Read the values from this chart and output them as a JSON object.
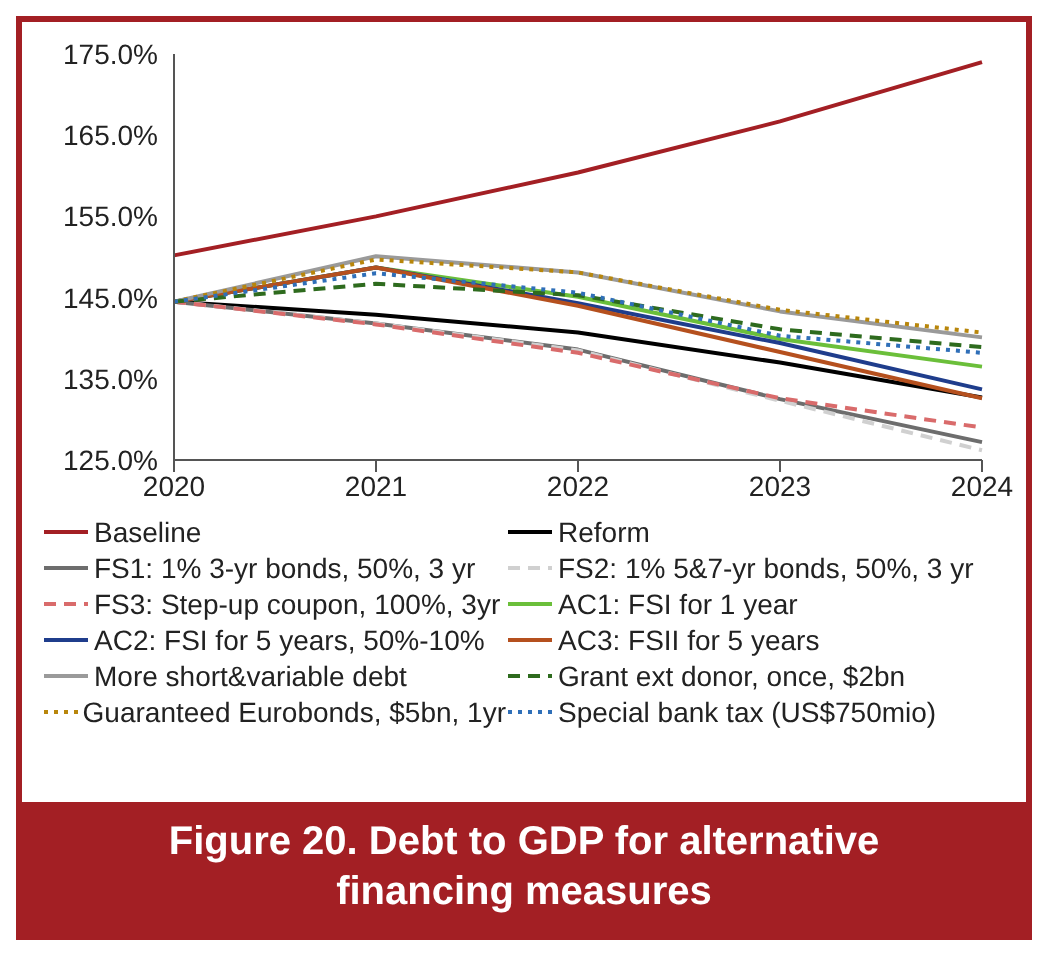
{
  "chart_data": {
    "type": "line",
    "title": "Figure 20. Debt to GDP for alternative financing measures",
    "categories": [
      "2020",
      "2021",
      "2022",
      "2023",
      "2024"
    ],
    "ylim": [
      125,
      175
    ],
    "yticks": [
      {
        "value": 125,
        "label": "125.0%"
      },
      {
        "value": 135,
        "label": "135.0%"
      },
      {
        "value": 145,
        "label": "145.0%"
      },
      {
        "value": 155,
        "label": "155.0%"
      },
      {
        "value": 165,
        "label": "165.0%"
      },
      {
        "value": 175,
        "label": "175.0%"
      }
    ],
    "grid": false,
    "legend": "bottom",
    "marker": "none",
    "series": [
      {
        "name": "Baseline",
        "color": "#a31f24",
        "line_style": "solid",
        "values": [
          150.2,
          155.0,
          160.4,
          166.7,
          174.0
        ]
      },
      {
        "name": "Reform",
        "color": "#000000",
        "line_style": "solid",
        "values": [
          144.5,
          142.9,
          140.7,
          137.0,
          132.7
        ]
      },
      {
        "name": "FS1: 1% 3-yr bonds, 50%, 3 yr",
        "color": "#6d6d6d",
        "line_style": "solid",
        "values": [
          144.5,
          141.8,
          138.6,
          132.5,
          127.2
        ]
      },
      {
        "name": "FS2: 1% 5&7-yr bonds, 50%, 3 yr",
        "color": "#d0d0d0",
        "line_style": "dashed",
        "values": [
          144.5,
          141.8,
          138.5,
          132.3,
          126.2
        ]
      },
      {
        "name": "FS3: Step-up coupon, 100%, 3yr",
        "color": "#d96b6b",
        "line_style": "dashed",
        "values": [
          144.5,
          141.7,
          138.2,
          132.6,
          129.0
        ]
      },
      {
        "name": "AC1: FSI for 1 year",
        "color": "#6bbf3a",
        "line_style": "solid",
        "values": [
          144.5,
          148.7,
          145.1,
          139.9,
          136.5
        ]
      },
      {
        "name": "AC2: FSI for 5 years, 50%-10%",
        "color": "#1f3d8c",
        "line_style": "solid",
        "values": [
          144.5,
          148.7,
          144.3,
          139.4,
          133.7
        ]
      },
      {
        "name": "AC3: FSII for 5 years",
        "color": "#b5501e",
        "line_style": "solid",
        "values": [
          144.5,
          148.7,
          144.0,
          138.3,
          132.6
        ]
      },
      {
        "name": "More short&variable debt",
        "color": "#9a9a9a",
        "line_style": "solid",
        "values": [
          144.5,
          150.1,
          148.1,
          143.3,
          140.1
        ]
      },
      {
        "name": "Grant ext donor, once, $2bn",
        "color": "#2e6b1e",
        "line_style": "dashed",
        "values": [
          144.5,
          146.7,
          145.3,
          141.1,
          138.9
        ]
      },
      {
        "name": "Guaranteed Eurobonds, $5bn, 1yr",
        "color": "#b8860b",
        "line_style": "dotted",
        "values": [
          144.5,
          149.7,
          148.1,
          143.5,
          140.7
        ]
      },
      {
        "name": "Special bank tax (US$750mio)",
        "color": "#2f6fb8",
        "line_style": "dotted",
        "values": [
          144.5,
          148.0,
          145.6,
          140.3,
          138.2
        ]
      }
    ]
  }
}
